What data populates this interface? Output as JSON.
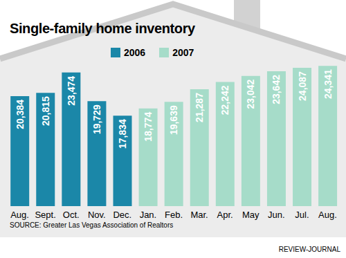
{
  "chart_data": {
    "type": "bar",
    "title": "Single-family home inventory",
    "categories": [
      "Aug.",
      "Sept.",
      "Oct.",
      "Nov.",
      "Dec.",
      "Jan.",
      "Feb.",
      "Mar.",
      "Apr.",
      "May",
      "Jun.",
      "Jul.",
      "Aug."
    ],
    "series": [
      {
        "name": "2006",
        "color": "#1b87a8",
        "values": [
          20384,
          20815,
          23474,
          19729,
          17834,
          null,
          null,
          null,
          null,
          null,
          null,
          null,
          null
        ],
        "value_labels": [
          "20,384",
          "20,815",
          "23,474",
          "19,729",
          "17,834",
          null,
          null,
          null,
          null,
          null,
          null,
          null,
          null
        ]
      },
      {
        "name": "2007",
        "color": "#a6dcc9",
        "values": [
          null,
          null,
          null,
          null,
          null,
          18774,
          19639,
          21287,
          22242,
          23042,
          23642,
          24087,
          24341
        ],
        "value_labels": [
          null,
          null,
          null,
          null,
          null,
          "18,774",
          "19,639",
          "21,287",
          "22,242",
          "23,042",
          "23,642",
          "24,087",
          "24,341"
        ]
      }
    ],
    "ylim": [
      6000,
      25000
    ],
    "data_labels": true,
    "tick_labels": "x",
    "annotations": [
      "SOURCE: Greater Las Vegas Association of Realtors",
      "REVIEW-JOURNAL"
    ]
  }
}
